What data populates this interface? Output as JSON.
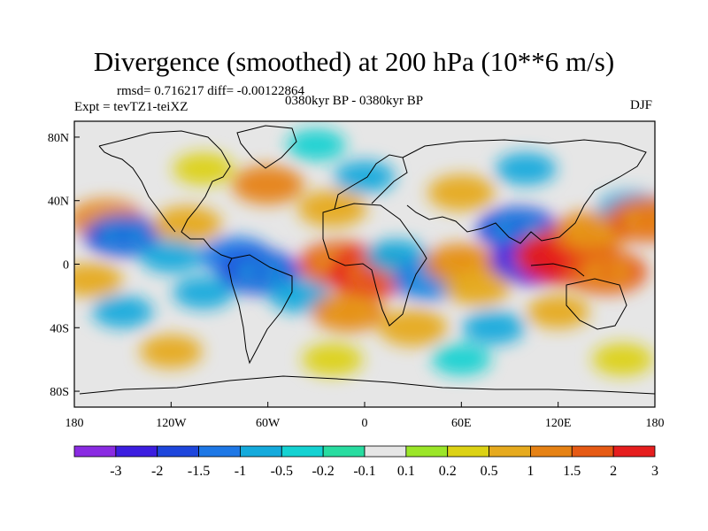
{
  "title": "Divergence (smoothed) at 200 hPa (10**6 m/s)",
  "stats": "rmsd= 0.716217 diff= -0.00122864",
  "experiment": "Expt = tevTZ1-teiXZ",
  "period": "0380kyr BP - 0380kyr BP",
  "season": "DJF",
  "map": {
    "lat_range": [
      -90,
      90
    ],
    "lon_range": [
      -180,
      180
    ],
    "x_ticks": [
      "180",
      "120W",
      "60W",
      "0",
      "60E",
      "120E",
      "180"
    ],
    "y_ticks": [
      "80N",
      "40N",
      "0",
      "40S",
      "80S"
    ],
    "field_blobs": [
      {
        "lon": -160,
        "lat": 28,
        "value": 1.4
      },
      {
        "lon": -150,
        "lat": 18,
        "value": -1.5
      },
      {
        "lon": -110,
        "lat": 25,
        "value": 1.0
      },
      {
        "lon": -120,
        "lat": 5,
        "value": -0.6
      },
      {
        "lon": -170,
        "lat": -10,
        "value": 0.7
      },
      {
        "lon": -150,
        "lat": -30,
        "value": -0.5
      },
      {
        "lon": -100,
        "lat": -18,
        "value": -0.5
      },
      {
        "lon": -80,
        "lat": 5,
        "value": -1.2
      },
      {
        "lon": -65,
        "lat": -5,
        "value": -1.8
      },
      {
        "lon": -40,
        "lat": -20,
        "value": -0.6
      },
      {
        "lon": -15,
        "lat": 0,
        "value": 2.0
      },
      {
        "lon": 5,
        "lat": -5,
        "value": 2.5
      },
      {
        "lon": -10,
        "lat": -30,
        "value": 1.3
      },
      {
        "lon": 20,
        "lat": 5,
        "value": -0.6
      },
      {
        "lon": 40,
        "lat": -10,
        "value": -1.3
      },
      {
        "lon": 30,
        "lat": -40,
        "value": 1.0
      },
      {
        "lon": 60,
        "lat": 0,
        "value": 1.4
      },
      {
        "lon": 70,
        "lat": -15,
        "value": 0.8
      },
      {
        "lon": 95,
        "lat": 22,
        "value": -1.8
      },
      {
        "lon": 105,
        "lat": 2,
        "value": -2.2
      },
      {
        "lon": 125,
        "lat": 5,
        "value": 3.2
      },
      {
        "lon": 140,
        "lat": 20,
        "value": 1.5
      },
      {
        "lon": 150,
        "lat": -5,
        "value": 1.8
      },
      {
        "lon": 120,
        "lat": -30,
        "value": 0.6
      },
      {
        "lon": 165,
        "lat": 35,
        "value": -0.8
      },
      {
        "lon": -60,
        "lat": 50,
        "value": 1.2
      },
      {
        "lon": 0,
        "lat": 55,
        "value": -0.5
      },
      {
        "lon": 60,
        "lat": 45,
        "value": 0.9
      },
      {
        "lon": 100,
        "lat": 60,
        "value": -0.5
      },
      {
        "lon": -30,
        "lat": 75,
        "value": -0.4
      },
      {
        "lon": -100,
        "lat": 60,
        "value": 0.5
      },
      {
        "lon": 175,
        "lat": 28,
        "value": 1.8
      },
      {
        "lon": -20,
        "lat": 35,
        "value": 1.0
      },
      {
        "lon": 80,
        "lat": -40,
        "value": -0.6
      },
      {
        "lon": -120,
        "lat": -55,
        "value": 0.6
      },
      {
        "lon": 60,
        "lat": -60,
        "value": -0.4
      },
      {
        "lon": 160,
        "lat": -60,
        "value": 0.5
      },
      {
        "lon": -20,
        "lat": -60,
        "value": 0.5
      }
    ]
  },
  "colorbar": {
    "colors": [
      "#8a2be2",
      "#3c1ee0",
      "#1e46dc",
      "#1e78e6",
      "#14aadc",
      "#14d2d2",
      "#28dca0",
      "#e6e6e6",
      "#9be628",
      "#dcd214",
      "#e6aa1e",
      "#e68214",
      "#e65a14",
      "#e61e1e"
    ],
    "labels": [
      "-3",
      "-2",
      "-1.5",
      "-1",
      "-0.5",
      "-0.2",
      "-0.1",
      "0.1",
      "0.2",
      "0.5",
      "1",
      "1.5",
      "2",
      "3"
    ]
  }
}
